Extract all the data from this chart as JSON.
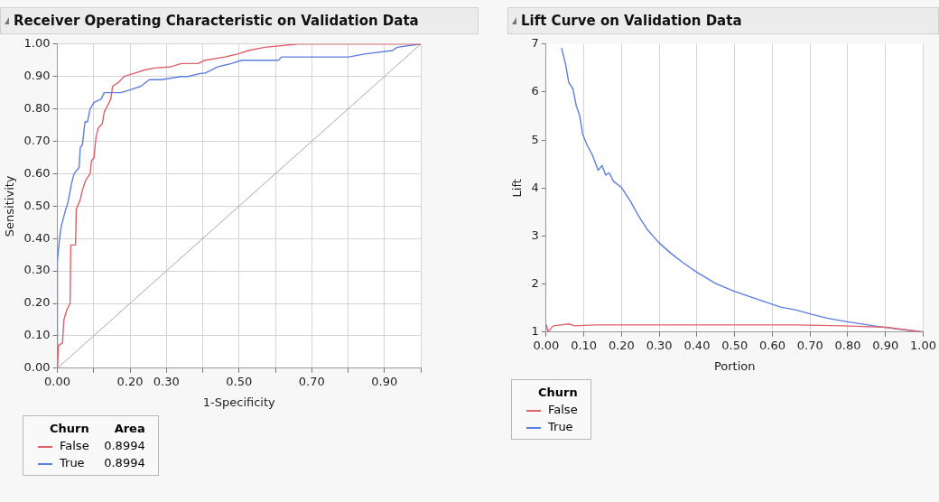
{
  "chart_data": [
    {
      "type": "line",
      "title": "Receiver Operating Characteristic on Validation Data",
      "xlabel": "1-Specificity",
      "ylabel": "Sensitivity",
      "legend_title": "Churn",
      "annotations": [
        "Area",
        "0.8994",
        "0.8994"
      ],
      "legend": "bottom left",
      "grid": true,
      "marker": "none",
      "xlim": [
        0,
        1
      ],
      "ylim": [
        0,
        1
      ],
      "xticks": [
        {
          "value": 0,
          "label": "0.00"
        },
        {
          "value": 0.1,
          "label": null
        },
        {
          "value": 0.2,
          "label": "0.20"
        },
        {
          "value": 0.3,
          "label": "0.30"
        },
        {
          "value": 0.4,
          "label": null
        },
        {
          "value": 0.5,
          "label": "0.50"
        },
        {
          "value": 0.6,
          "label": null
        },
        {
          "value": 0.7,
          "label": "0.70"
        },
        {
          "value": 0.8,
          "label": null
        },
        {
          "value": 0.9,
          "label": "0.90"
        },
        {
          "value": 1,
          "label": null
        }
      ],
      "yticks": [
        {
          "value": 0,
          "label": "0.00"
        },
        {
          "value": 0.1,
          "label": "0.10"
        },
        {
          "value": 0.2,
          "label": "0.20"
        },
        {
          "value": 0.3,
          "label": "0.30"
        },
        {
          "value": 0.4,
          "label": "0.40"
        },
        {
          "value": 0.5,
          "label": "0.50"
        },
        {
          "value": 0.6,
          "label": "0.60"
        },
        {
          "value": 0.7,
          "label": "0.70"
        },
        {
          "value": 0.8,
          "label": "0.80"
        },
        {
          "value": 0.9,
          "label": "0.90"
        },
        {
          "value": 1,
          "label": "1.00"
        }
      ],
      "series": [
        {
          "name": "False",
          "color": "#e0606a",
          "x": [
            0,
            0.003,
            0.014,
            0.018,
            0.026,
            0.035,
            0.037,
            0.05,
            0.052,
            0.063,
            0.069,
            0.078,
            0.09,
            0.094,
            0.101,
            0.106,
            0.112,
            0.124,
            0.129,
            0.138,
            0.147,
            0.152,
            0.166,
            0.184,
            0.212,
            0.24,
            0.267,
            0.313,
            0.341,
            0.387,
            0.406,
            0.461,
            0.498,
            0.525,
            0.571,
            0.664,
            1
          ],
          "values": [
            0,
            0.07,
            0.078,
            0.15,
            0.18,
            0.2,
            0.38,
            0.38,
            0.49,
            0.52,
            0.55,
            0.58,
            0.6,
            0.64,
            0.65,
            0.71,
            0.74,
            0.755,
            0.79,
            0.81,
            0.83,
            0.87,
            0.88,
            0.9,
            0.91,
            0.92,
            0.926,
            0.93,
            0.94,
            0.94,
            0.95,
            0.96,
            0.97,
            0.98,
            0.99,
            1,
            1
          ]
        },
        {
          "name": "True",
          "color": "#5b7fe0",
          "x": [
            0,
            0,
            0.006,
            0.011,
            0.023,
            0.029,
            0.039,
            0.046,
            0.06,
            0.063,
            0.069,
            0.076,
            0.083,
            0.09,
            0.101,
            0.12,
            0.129,
            0.143,
            0.175,
            0.203,
            0.23,
            0.253,
            0.286,
            0.341,
            0.359,
            0.396,
            0.406,
            0.442,
            0.479,
            0.507,
            0.562,
            0.608,
            0.617,
            0.802,
            0.848,
            0.922,
            0.935,
            1
          ],
          "values": [
            0,
            0.33,
            0.4,
            0.44,
            0.49,
            0.51,
            0.57,
            0.6,
            0.62,
            0.68,
            0.69,
            0.76,
            0.76,
            0.8,
            0.82,
            0.83,
            0.85,
            0.85,
            0.85,
            0.86,
            0.87,
            0.89,
            0.89,
            0.9,
            0.9,
            0.91,
            0.91,
            0.93,
            0.94,
            0.95,
            0.95,
            0.95,
            0.96,
            0.96,
            0.97,
            0.98,
            0.99,
            1
          ]
        },
        {
          "color": "#a8a8a8",
          "x": [
            0,
            1
          ],
          "values": [
            0,
            1
          ]
        }
      ]
    },
    {
      "type": "line",
      "title": "Lift Curve on Validation Data",
      "xlabel": "Portion",
      "ylabel": "Lift",
      "legend_title": "Churn",
      "legend": "bottom left",
      "grid": "x",
      "marker": "none",
      "xlim": [
        0,
        1
      ],
      "ylim": [
        1,
        7
      ],
      "xticks": [
        {
          "value": 0,
          "label": "0.00"
        },
        {
          "value": 0.1,
          "label": "0.10"
        },
        {
          "value": 0.2,
          "label": "0.20"
        },
        {
          "value": 0.3,
          "label": "0.30"
        },
        {
          "value": 0.4,
          "label": "0.40"
        },
        {
          "value": 0.5,
          "label": "0.50"
        },
        {
          "value": 0.6,
          "label": "0.60"
        },
        {
          "value": 0.7,
          "label": "0.70"
        },
        {
          "value": 0.8,
          "label": "0.80"
        },
        {
          "value": 0.9,
          "label": "0.90"
        },
        {
          "value": 1,
          "label": "1.00"
        }
      ],
      "yticks": [
        1,
        2,
        3,
        4,
        5,
        6,
        7
      ],
      "series": [
        {
          "name": "False",
          "color": "#e0606a",
          "x": [
            0,
            0.005,
            0.019,
            0.039,
            0.06,
            0.076,
            0.13,
            0.335,
            0.663,
            0.786,
            0.903,
            1
          ],
          "values": [
            1.16,
            1.01,
            1.13,
            1.15,
            1.17,
            1.13,
            1.15,
            1.15,
            1.15,
            1.13,
            1.1,
            1
          ]
        },
        {
          "name": "True",
          "color": "#5b7fe0",
          "x": [
            0.041,
            0.052,
            0.06,
            0.071,
            0.08,
            0.089,
            0.097,
            0.109,
            0.122,
            0.138,
            0.148,
            0.158,
            0.167,
            0.179,
            0.2,
            0.224,
            0.245,
            0.269,
            0.298,
            0.331,
            0.364,
            0.401,
            0.45,
            0.499,
            0.565,
            0.622,
            0.663,
            0.704,
            0.745,
            0.795,
            0.869,
            0.926,
            1
          ],
          "values": [
            6.92,
            6.56,
            6.2,
            6.07,
            5.71,
            5.51,
            5.12,
            4.89,
            4.7,
            4.37,
            4.47,
            4.27,
            4.32,
            4.14,
            4.01,
            3.72,
            3.42,
            3.13,
            2.87,
            2.64,
            2.44,
            2.24,
            2.01,
            1.85,
            1.67,
            1.52,
            1.46,
            1.37,
            1.29,
            1.22,
            1.13,
            1.07,
            1
          ]
        }
      ]
    }
  ]
}
